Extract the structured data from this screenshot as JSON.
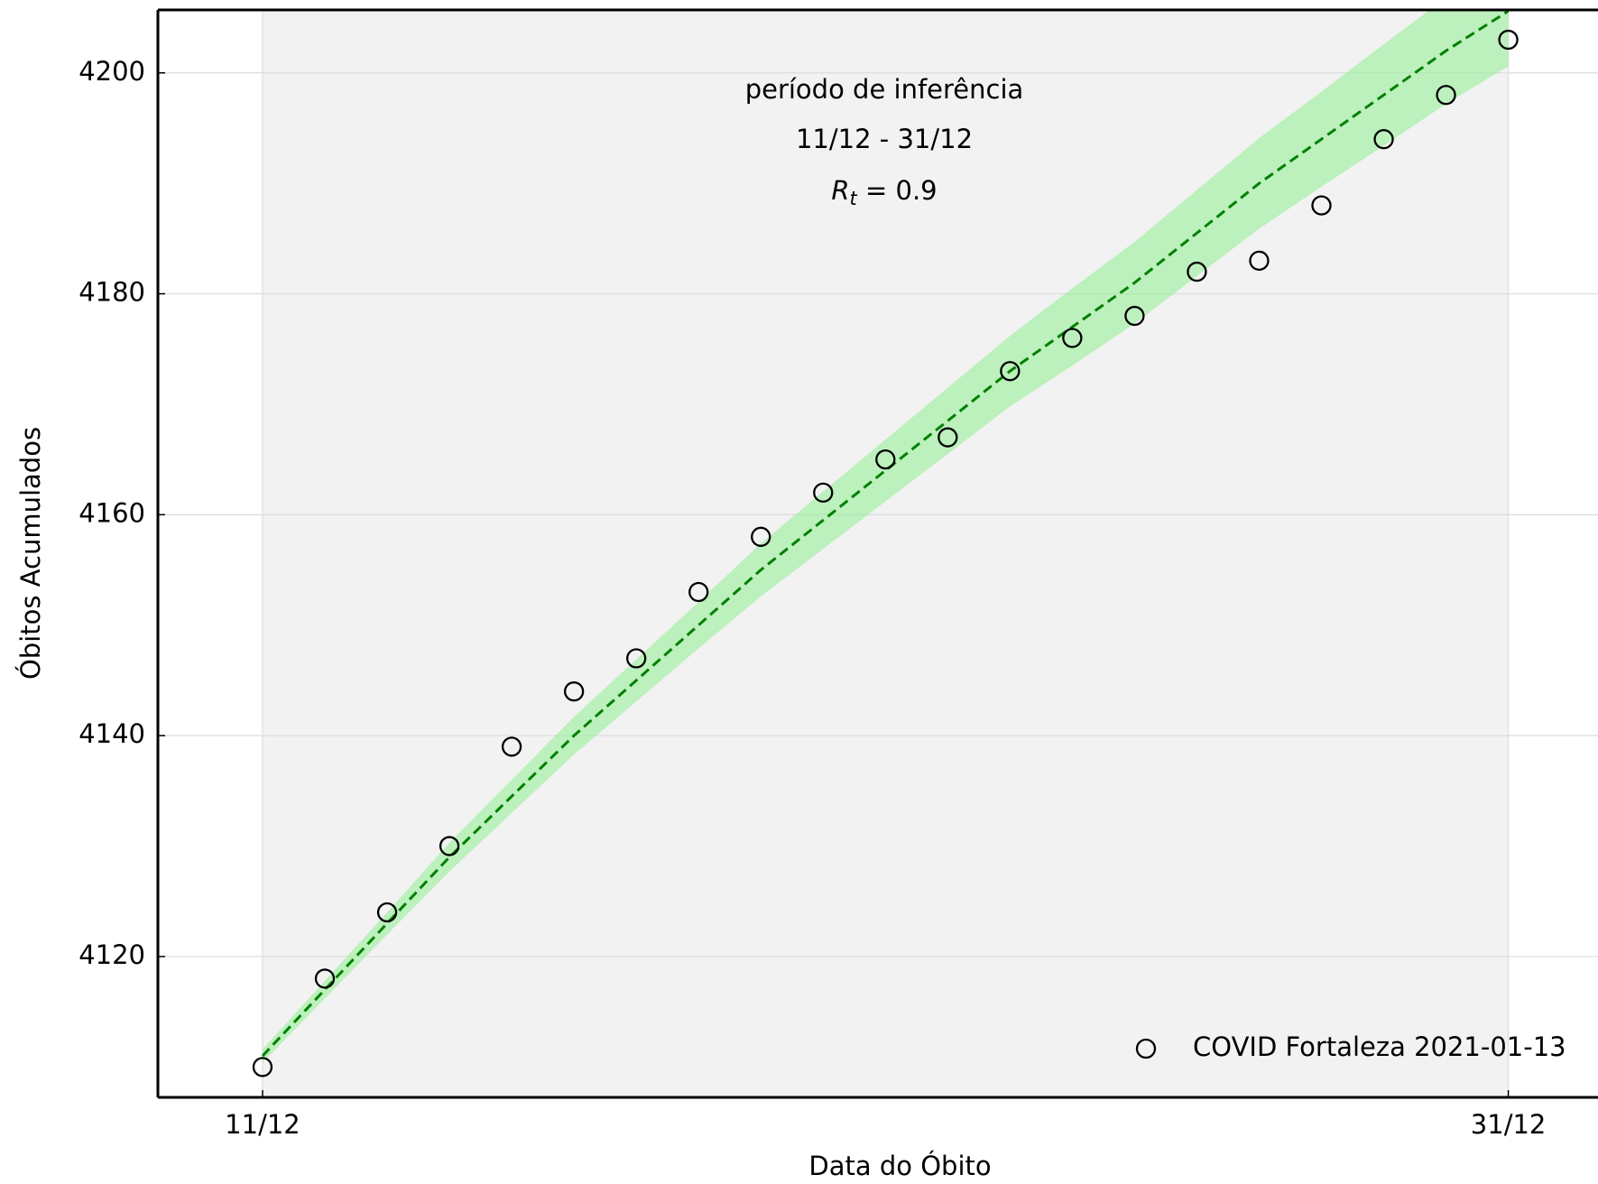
{
  "chart_data": {
    "type": "scatter",
    "xlabel": "Data do Óbito",
    "ylabel": "Óbitos Acumulados",
    "annotation": {
      "line1": "período de inferência",
      "line2": "11/12 - 31/12",
      "symbol": "R",
      "subscript": "t",
      "equation": " = 0.9"
    },
    "x": [
      0,
      1,
      2,
      3,
      4,
      5,
      6,
      7,
      8,
      9,
      10,
      11,
      12,
      13,
      14,
      15,
      16,
      17,
      18,
      19,
      20
    ],
    "series": [
      {
        "name": "COVID Fortaleza 2021-01-13",
        "color": "#000000",
        "values": [
          4110,
          4118,
          4124,
          4130,
          4139,
          4144,
          4147,
          4153,
          4158,
          4162,
          4165,
          4167,
          4173,
          4176,
          4178,
          4182,
          4183,
          4188,
          4194,
          4198,
          4203
        ]
      }
    ],
    "fit": {
      "color": "#008000",
      "values": [
        4111,
        4117,
        4123,
        4129,
        4134.5,
        4140,
        4145,
        4150,
        4155,
        4159.5,
        4164,
        4168.5,
        4173,
        4177,
        4181,
        4185.5,
        4190,
        4194,
        4198,
        4202,
        4205.6
      ]
    },
    "band": {
      "color": "#90ee90",
      "upper": [
        4111.6,
        4117.8,
        4124,
        4130.3,
        4136,
        4141.7,
        4146.9,
        4152.1,
        4157.4,
        4162.1,
        4166.8,
        4171.5,
        4176.2,
        4180.5,
        4184.7,
        4189.4,
        4194.1,
        4198.3,
        4202.6,
        4206.8,
        4210.6
      ],
      "lower": [
        4110.4,
        4116.2,
        4122,
        4127.7,
        4133,
        4138.3,
        4143.1,
        4147.9,
        4152.6,
        4156.9,
        4161.2,
        4165.5,
        4169.8,
        4173.5,
        4177.3,
        4181.6,
        4185.9,
        4189.7,
        4193.4,
        4197.2,
        4200.6
      ]
    },
    "span": [
      0,
      20
    ],
    "xlim": [
      -1.68,
      21.44
    ],
    "ylim": [
      4107.25,
      4205.7
    ],
    "xticks": [
      {
        "value": 0,
        "label": "11/12"
      },
      {
        "value": 20,
        "label": "31/12"
      }
    ],
    "yticks": [
      4120,
      4140,
      4160,
      4180,
      4200
    ],
    "grid": true,
    "legend": "lower right"
  }
}
